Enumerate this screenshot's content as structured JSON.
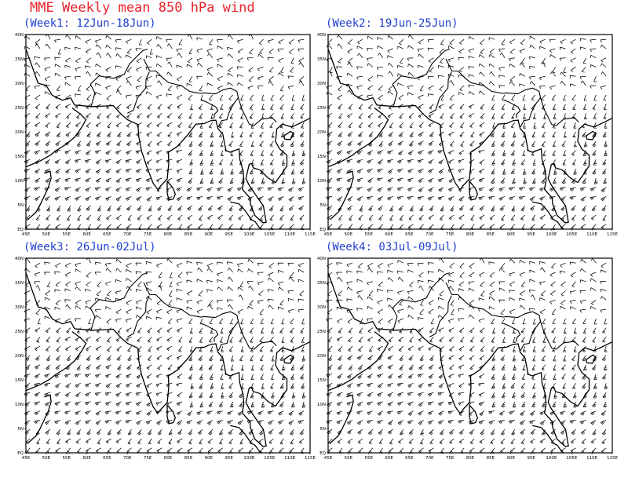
{
  "title": "MME Weekly mean 850 hPa wind",
  "colors": {
    "title": "#e8232a",
    "panel_title": "#1f3fd0",
    "coast": "#000000",
    "barb": "#000000"
  },
  "axes": {
    "lon_labels": [
      "45E",
      "50E",
      "55E",
      "60E",
      "65E",
      "70E",
      "75E",
      "80E",
      "85E",
      "90E",
      "95E",
      "100E",
      "105E",
      "110E",
      "115E"
    ],
    "lat_labels": [
      "EQ",
      "5N",
      "10N",
      "15N",
      "20N",
      "25N",
      "30N",
      "35N",
      "40N"
    ],
    "lon_range": [
      45,
      115
    ],
    "lat_range": [
      0,
      40
    ]
  },
  "panels": [
    {
      "title": "(Week1: 12Jun-18Jun)"
    },
    {
      "title": "(Week2: 19Jun-25Jun)"
    },
    {
      "title": "(Week3: 26Jun-02Jul)"
    },
    {
      "title": "(Week4: 03Jul-09Jul)"
    }
  ]
}
